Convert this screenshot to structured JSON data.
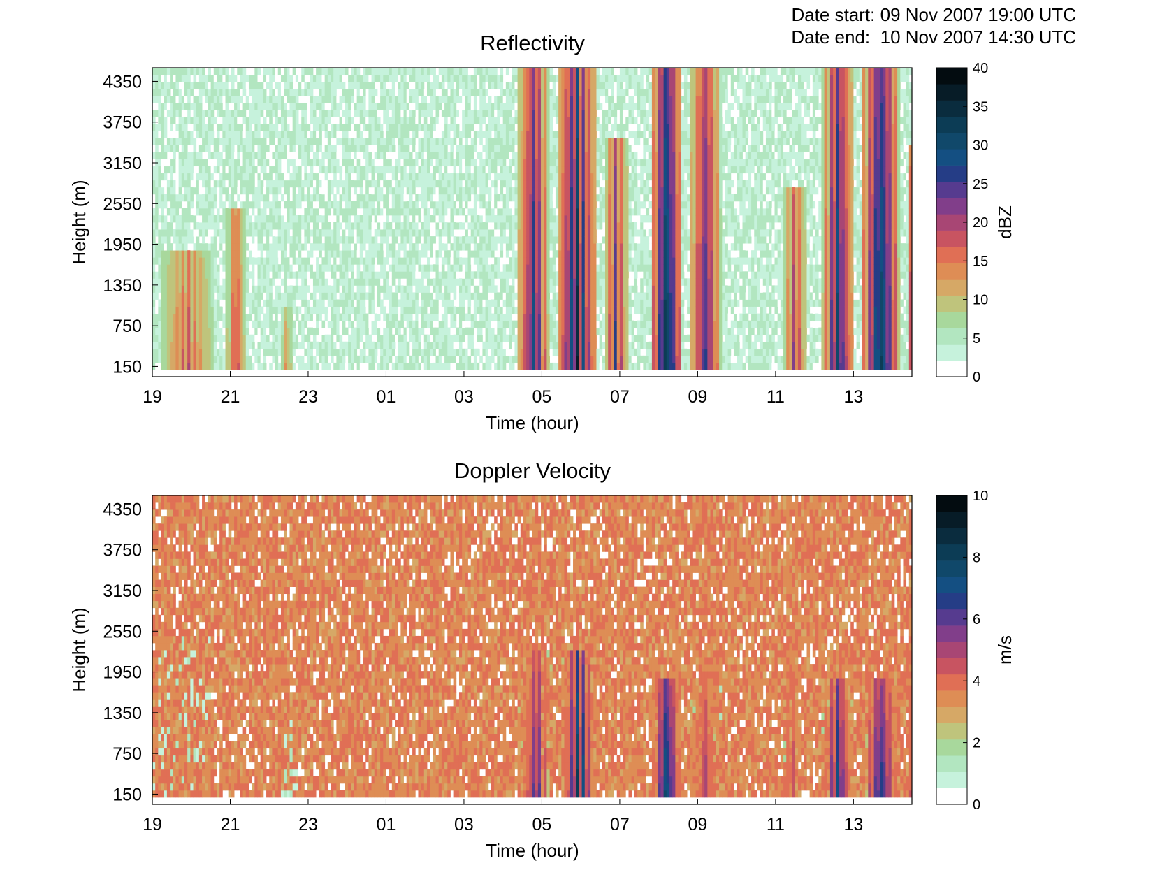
{
  "header": {
    "date_start_label": "Date start:",
    "date_start_value": "09 Nov 2007 19:00 UTC",
    "date_end_label": "Date end:",
    "date_end_value": "10 Nov 2007 14:30 UTC"
  },
  "colormap": [
    "#ffffff",
    "#c6f2dc",
    "#b2e6c0",
    "#a8d89c",
    "#bfc47c",
    "#d6a866",
    "#de8d55",
    "#e06f55",
    "#c85461",
    "#a84674",
    "#813e8a",
    "#563b8f",
    "#253d86",
    "#144f82",
    "#10486a",
    "#0c3c55",
    "#0a2c3e",
    "#071c27",
    "#030c10"
  ],
  "chart_data": [
    {
      "type": "heatmap",
      "title": "Reflectivity",
      "xlabel": "Time (hour)",
      "ylabel": "Height (m)",
      "x_ticks": [
        "19",
        "21",
        "23",
        "01",
        "03",
        "05",
        "07",
        "09",
        "11",
        "13"
      ],
      "x_range_hours": [
        19,
        38.5
      ],
      "y_ticks": [
        150,
        750,
        1350,
        1950,
        2550,
        3150,
        3750,
        4350
      ],
      "y_range_m": [
        0,
        4550
      ],
      "colorbar": {
        "label": "dBZ",
        "min": 0,
        "max": 40,
        "ticks": [
          0,
          5,
          10,
          15,
          20,
          25,
          30,
          35,
          40
        ]
      },
      "background_level": 3,
      "events": [
        {
          "start": 19.2,
          "end": 20.6,
          "top": 1900,
          "peak": 20
        },
        {
          "start": 20.9,
          "end": 21.4,
          "top": 2500,
          "peak": 22
        },
        {
          "start": 22.3,
          "end": 22.6,
          "top": 1000,
          "peak": 16
        },
        {
          "start": 28.4,
          "end": 29.2,
          "top": 4550,
          "peak": 32
        },
        {
          "start": 29.4,
          "end": 30.4,
          "top": 4550,
          "peak": 38
        },
        {
          "start": 30.6,
          "end": 31.2,
          "top": 3500,
          "peak": 28
        },
        {
          "start": 31.8,
          "end": 32.6,
          "top": 4550,
          "peak": 40
        },
        {
          "start": 32.8,
          "end": 33.6,
          "top": 4550,
          "peak": 30
        },
        {
          "start": 35.2,
          "end": 35.8,
          "top": 2800,
          "peak": 24
        },
        {
          "start": 36.2,
          "end": 37.0,
          "top": 4550,
          "peak": 34
        },
        {
          "start": 37.2,
          "end": 38.2,
          "top": 4550,
          "peak": 38
        },
        {
          "start": 38.4,
          "end": 38.7,
          "top": 3400,
          "peak": 40
        }
      ]
    },
    {
      "type": "heatmap",
      "title": "Doppler Velocity",
      "xlabel": "Time (hour)",
      "ylabel": "Height (m)",
      "x_ticks": [
        "19",
        "21",
        "23",
        "01",
        "03",
        "05",
        "07",
        "09",
        "11",
        "13"
      ],
      "x_range_hours": [
        19,
        38.5
      ],
      "y_ticks": [
        150,
        750,
        1350,
        1950,
        2550,
        3150,
        3750,
        4350
      ],
      "y_range_m": [
        0,
        4550
      ],
      "colorbar": {
        "label": "m/s",
        "min": 0,
        "max": 10,
        "ticks": [
          0,
          2,
          4,
          6,
          8,
          10
        ]
      },
      "background_level": 3.5,
      "events": [
        {
          "start": 19.0,
          "end": 20.5,
          "top": 2500,
          "peak": 1.5
        },
        {
          "start": 22.2,
          "end": 22.8,
          "top": 1500,
          "peak": 1.2
        },
        {
          "start": 28.4,
          "end": 29.3,
          "top": 2300,
          "peak": 7
        },
        {
          "start": 29.5,
          "end": 30.4,
          "top": 2300,
          "peak": 9
        },
        {
          "start": 31.8,
          "end": 32.6,
          "top": 1900,
          "peak": 9
        },
        {
          "start": 32.8,
          "end": 33.6,
          "top": 1900,
          "peak": 6
        },
        {
          "start": 35.2,
          "end": 35.6,
          "top": 1900,
          "peak": 6
        },
        {
          "start": 36.2,
          "end": 37.0,
          "top": 1900,
          "peak": 8
        },
        {
          "start": 37.2,
          "end": 38.2,
          "top": 1900,
          "peak": 8
        },
        {
          "start": 38.4,
          "end": 38.7,
          "top": 3000,
          "peak": 9
        }
      ]
    }
  ]
}
